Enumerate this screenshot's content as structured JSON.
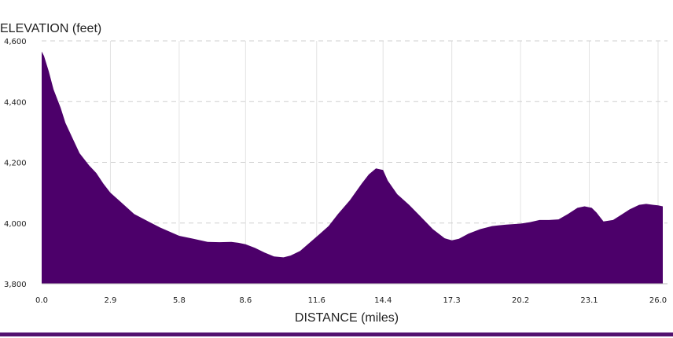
{
  "colors": {
    "fill": "#4c006a",
    "footer_bar": "#53116f"
  },
  "chart_data": {
    "type": "area",
    "title": "",
    "ylabel": "ELEVATION (feet)",
    "xlabel": "DISTANCE (miles)",
    "ylim": [
      3800,
      4600
    ],
    "xlim": [
      0.0,
      26.2
    ],
    "y_ticks": [
      "3,800",
      "4,000",
      "4,200",
      "4,400",
      "4,600"
    ],
    "y_tick_values": [
      3800,
      4000,
      4200,
      4400,
      4600
    ],
    "x_ticks": [
      "0.0",
      "2.9",
      "5.8",
      "8.6",
      "11.6",
      "14.4",
      "17.3",
      "20.2",
      "23.1",
      "26.0"
    ],
    "x_tick_values": [
      0.0,
      2.9,
      5.8,
      8.6,
      11.6,
      14.4,
      17.3,
      20.2,
      23.1,
      26.0
    ],
    "grid": true,
    "series": [
      {
        "x": [
          0.0,
          0.1,
          0.3,
          0.5,
          0.8,
          1.0,
          1.3,
          1.6,
          2.0,
          2.3,
          2.6,
          2.9,
          3.4,
          3.9,
          4.5,
          5.0,
          5.8,
          6.4,
          7.0,
          7.5,
          8.0,
          8.3,
          8.6,
          9.0,
          9.4,
          9.8,
          10.2,
          10.5,
          10.9,
          11.3,
          11.7,
          12.1,
          12.5,
          13.0,
          13.5,
          13.8,
          14.1,
          14.4,
          14.6,
          15.0,
          15.5,
          16.0,
          16.5,
          17.0,
          17.3,
          17.6,
          18.0,
          18.5,
          19.0,
          19.6,
          20.2,
          20.6,
          21.0,
          21.4,
          21.8,
          22.2,
          22.6,
          22.9,
          23.2,
          23.4,
          23.7,
          24.1,
          24.4,
          24.8,
          25.2,
          25.5,
          25.8,
          26.0,
          26.2
        ],
        "y": [
          4565,
          4550,
          4500,
          4440,
          4380,
          4330,
          4280,
          4230,
          4190,
          4165,
          4130,
          4100,
          4065,
          4030,
          4005,
          3985,
          3958,
          3948,
          3938,
          3937,
          3938,
          3935,
          3930,
          3918,
          3903,
          3890,
          3887,
          3893,
          3908,
          3935,
          3962,
          3990,
          4030,
          4075,
          4130,
          4160,
          4180,
          4175,
          4140,
          4095,
          4060,
          4020,
          3980,
          3950,
          3943,
          3948,
          3965,
          3980,
          3990,
          3995,
          3998,
          4003,
          4010,
          4010,
          4012,
          4030,
          4050,
          4055,
          4050,
          4035,
          4005,
          4010,
          4025,
          4045,
          4060,
          4063,
          4060,
          4058,
          4055
        ]
      }
    ]
  }
}
